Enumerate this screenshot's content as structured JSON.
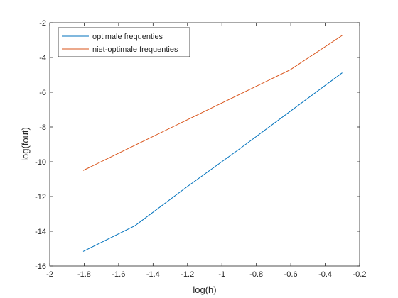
{
  "chart_data": {
    "type": "line",
    "title": "",
    "xlabel": "log(h)",
    "ylabel": "log(fout)",
    "xlim": [
      -2,
      -0.2
    ],
    "ylim": [
      -16,
      -2
    ],
    "xticks": [
      -2,
      -1.8,
      -1.6,
      -1.4,
      -1.2,
      -1,
      -0.8,
      -0.6,
      -0.4,
      -0.2
    ],
    "yticks": [
      -16,
      -14,
      -12,
      -10,
      -8,
      -6,
      -4,
      -2
    ],
    "xtick_labels": [
      "-2",
      "-1.8",
      "-1.6",
      "-1.4",
      "-1.2",
      "-1",
      "-0.8",
      "-0.6",
      "-0.4",
      "-0.2"
    ],
    "ytick_labels": [
      "-16",
      "-14",
      "-12",
      "-10",
      "-8",
      "-6",
      "-4",
      "-2"
    ],
    "grid": false,
    "legend_position": "top-left",
    "series": [
      {
        "name": "optimale frequenties",
        "color": "#0072BD",
        "x": [
          -1.806,
          -1.505,
          -1.204,
          -0.903,
          -0.602,
          -0.301
        ],
        "y": [
          -15.16,
          -13.68,
          -11.45,
          -9.3,
          -7.09,
          -4.88
        ]
      },
      {
        "name": "niet-optimale frequenties",
        "color": "#D95319",
        "x": [
          -1.806,
          -1.505,
          -1.204,
          -0.903,
          -0.602,
          -0.301
        ],
        "y": [
          -10.5,
          -9.05,
          -7.6,
          -6.15,
          -4.7,
          -2.73
        ]
      }
    ]
  }
}
